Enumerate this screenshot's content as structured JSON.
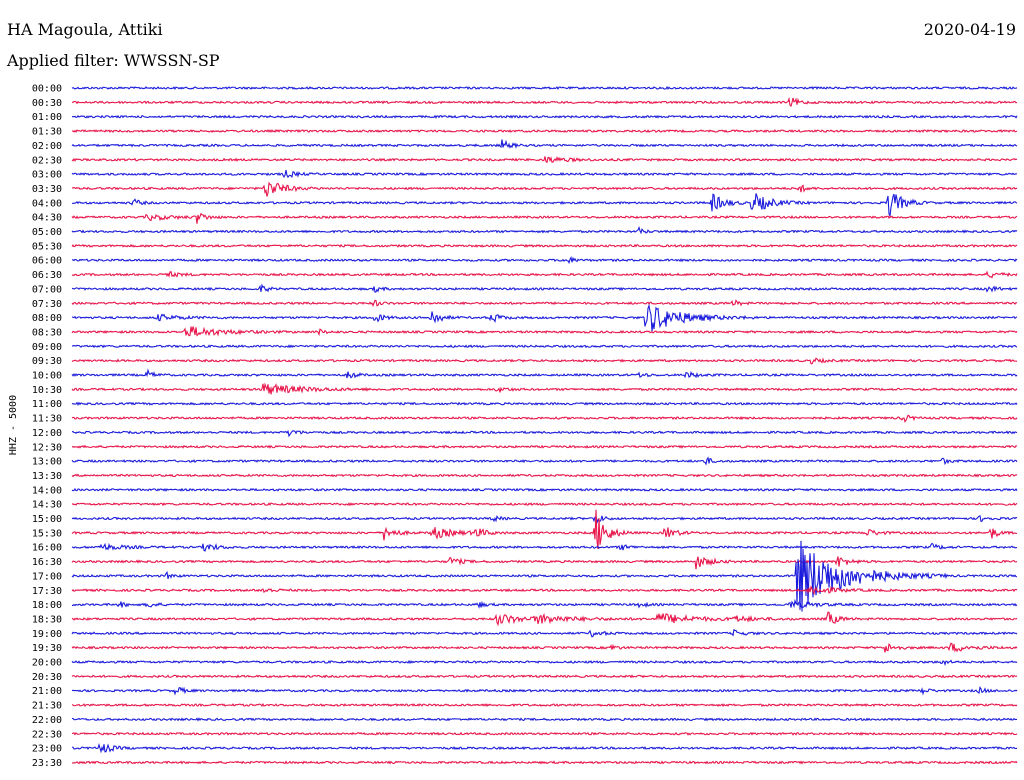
{
  "header": {
    "station": "HA Magoula, Attiki",
    "date": "2020-04-19",
    "filter": "Applied filter: WWSSN-SP"
  },
  "chart_data": {
    "type": "line",
    "subtype": "helicorder",
    "title": "HA Magoula, Attiki",
    "date": "2020-04-19",
    "filter": "WWSSN-SP",
    "ylabel": "HHZ - 5000",
    "xlabel": "",
    "colors": [
      "#1a1adc",
      "#e8144a"
    ],
    "rows": [
      {
        "label": "00:00",
        "color": "#1a1adc",
        "events": []
      },
      {
        "label": "00:30",
        "color": "#e8144a",
        "events": [
          {
            "t": 0.76,
            "a": 5,
            "d": 0.008
          }
        ]
      },
      {
        "label": "01:00",
        "color": "#1a1adc",
        "events": []
      },
      {
        "label": "01:30",
        "color": "#e8144a",
        "events": []
      },
      {
        "label": "02:00",
        "color": "#1a1adc",
        "events": [
          {
            "t": 0.455,
            "a": 5,
            "d": 0.008
          }
        ]
      },
      {
        "label": "02:30",
        "color": "#e8144a",
        "events": [
          {
            "t": 0.5,
            "a": 3,
            "d": 0.02
          }
        ]
      },
      {
        "label": "03:00",
        "color": "#1a1adc",
        "events": [
          {
            "t": 0.225,
            "a": 4,
            "d": 0.01
          }
        ]
      },
      {
        "label": "03:30",
        "color": "#e8144a",
        "events": [
          {
            "t": 0.205,
            "a": 10,
            "d": 0.015
          },
          {
            "t": 0.77,
            "a": 4,
            "d": 0.006
          }
        ]
      },
      {
        "label": "04:00",
        "color": "#1a1adc",
        "events": [
          {
            "t": 0.065,
            "a": 4,
            "d": 0.006
          },
          {
            "t": 0.677,
            "a": 9,
            "d": 0.012
          },
          {
            "t": 0.72,
            "a": 11,
            "d": 0.016
          },
          {
            "t": 0.864,
            "a": 15,
            "d": 0.012
          }
        ]
      },
      {
        "label": "04:30",
        "color": "#e8144a",
        "events": [
          {
            "t": 0.08,
            "a": 3,
            "d": 0.02
          },
          {
            "t": 0.132,
            "a": 6,
            "d": 0.008
          }
        ]
      },
      {
        "label": "05:00",
        "color": "#1a1adc",
        "events": [
          {
            "t": 0.6,
            "a": 3,
            "d": 0.006
          }
        ]
      },
      {
        "label": "05:30",
        "color": "#e8144a",
        "events": []
      },
      {
        "label": "06:00",
        "color": "#1a1adc",
        "events": [
          {
            "t": 0.522,
            "a": 5,
            "d": 0.006
          }
        ]
      },
      {
        "label": "06:30",
        "color": "#e8144a",
        "events": [
          {
            "t": 0.1,
            "a": 3,
            "d": 0.01
          },
          {
            "t": 0.97,
            "a": 3,
            "d": 0.01
          }
        ]
      },
      {
        "label": "07:00",
        "color": "#1a1adc",
        "events": [
          {
            "t": 0.2,
            "a": 4,
            "d": 0.006
          },
          {
            "t": 0.32,
            "a": 3,
            "d": 0.006
          },
          {
            "t": 0.97,
            "a": 3,
            "d": 0.008
          }
        ]
      },
      {
        "label": "07:30",
        "color": "#e8144a",
        "events": [
          {
            "t": 0.32,
            "a": 3,
            "d": 0.006
          },
          {
            "t": 0.7,
            "a": 3,
            "d": 0.006
          }
        ]
      },
      {
        "label": "08:00",
        "color": "#1a1adc",
        "events": [
          {
            "t": 0.09,
            "a": 3,
            "d": 0.02
          },
          {
            "t": 0.32,
            "a": 5,
            "d": 0.008
          },
          {
            "t": 0.38,
            "a": 9,
            "d": 0.008
          },
          {
            "t": 0.444,
            "a": 5,
            "d": 0.008
          },
          {
            "t": 0.608,
            "a": 16,
            "d": 0.03
          }
        ]
      },
      {
        "label": "08:30",
        "color": "#e8144a",
        "events": [
          {
            "t": 0.12,
            "a": 6,
            "d": 0.03
          },
          {
            "t": 0.26,
            "a": 3,
            "d": 0.006
          }
        ]
      },
      {
        "label": "09:00",
        "color": "#1a1adc",
        "events": []
      },
      {
        "label": "09:30",
        "color": "#e8144a",
        "events": [
          {
            "t": 0.78,
            "a": 3,
            "d": 0.01
          }
        ]
      },
      {
        "label": "10:00",
        "color": "#1a1adc",
        "events": [
          {
            "t": 0.08,
            "a": 4,
            "d": 0.006
          },
          {
            "t": 0.293,
            "a": 5,
            "d": 0.006
          },
          {
            "t": 0.6,
            "a": 3,
            "d": 0.006
          },
          {
            "t": 0.65,
            "a": 3,
            "d": 0.01
          }
        ]
      },
      {
        "label": "10:30",
        "color": "#e8144a",
        "events": [
          {
            "t": 0.2,
            "a": 6,
            "d": 0.035
          },
          {
            "t": 0.45,
            "a": 3,
            "d": 0.008
          }
        ]
      },
      {
        "label": "11:00",
        "color": "#1a1adc",
        "events": []
      },
      {
        "label": "11:30",
        "color": "#e8144a",
        "events": [
          {
            "t": 0.88,
            "a": 4,
            "d": 0.006
          }
        ]
      },
      {
        "label": "12:00",
        "color": "#1a1adc",
        "events": [
          {
            "t": 0.23,
            "a": 5,
            "d": 0.006
          }
        ]
      },
      {
        "label": "12:30",
        "color": "#e8144a",
        "events": []
      },
      {
        "label": "13:00",
        "color": "#1a1adc",
        "events": [
          {
            "t": 0.67,
            "a": 4,
            "d": 0.006
          },
          {
            "t": 0.92,
            "a": 3,
            "d": 0.006
          }
        ]
      },
      {
        "label": "13:30",
        "color": "#e8144a",
        "events": []
      },
      {
        "label": "14:00",
        "color": "#1a1adc",
        "events": []
      },
      {
        "label": "14:30",
        "color": "#e8144a",
        "events": []
      },
      {
        "label": "15:00",
        "color": "#1a1adc",
        "events": [
          {
            "t": 0.445,
            "a": 3,
            "d": 0.006
          },
          {
            "t": 0.554,
            "a": 6,
            "d": 0.006
          },
          {
            "t": 0.96,
            "a": 3,
            "d": 0.008
          }
        ]
      },
      {
        "label": "15:30",
        "color": "#e8144a",
        "events": [
          {
            "t": 0.33,
            "a": 7,
            "d": 0.01
          },
          {
            "t": 0.38,
            "a": 6,
            "d": 0.02
          },
          {
            "t": 0.426,
            "a": 6,
            "d": 0.01
          },
          {
            "t": 0.554,
            "a": 24,
            "d": 0.01
          },
          {
            "t": 0.628,
            "a": 6,
            "d": 0.01
          },
          {
            "t": 0.84,
            "a": 4,
            "d": 0.01
          },
          {
            "t": 0.972,
            "a": 7,
            "d": 0.006
          }
        ]
      },
      {
        "label": "16:00",
        "color": "#1a1adc",
        "events": [
          {
            "t": 0.03,
            "a": 3,
            "d": 0.02
          },
          {
            "t": 0.14,
            "a": 5,
            "d": 0.01
          },
          {
            "t": 0.58,
            "a": 3,
            "d": 0.008
          },
          {
            "t": 0.91,
            "a": 3,
            "d": 0.008
          }
        ]
      },
      {
        "label": "16:30",
        "color": "#e8144a",
        "events": [
          {
            "t": 0.4,
            "a": 4,
            "d": 0.01
          },
          {
            "t": 0.66,
            "a": 7,
            "d": 0.012
          },
          {
            "t": 0.81,
            "a": 6,
            "d": 0.01
          }
        ]
      },
      {
        "label": "17:00",
        "color": "#1a1adc",
        "events": [
          {
            "t": 0.1,
            "a": 3,
            "d": 0.006
          },
          {
            "t": 0.767,
            "a": 40,
            "d": 0.04
          },
          {
            "t": 0.795,
            "a": 6,
            "d": 0.02
          }
        ]
      },
      {
        "label": "17:30",
        "color": "#e8144a",
        "events": [
          {
            "t": 0.2,
            "a": 3,
            "d": 0.01
          },
          {
            "t": 0.78,
            "a": 5,
            "d": 0.02
          }
        ]
      },
      {
        "label": "18:00",
        "color": "#1a1adc",
        "events": [
          {
            "t": 0.05,
            "a": 3,
            "d": 0.006
          },
          {
            "t": 0.08,
            "a": 4,
            "d": 0.006
          },
          {
            "t": 0.43,
            "a": 3,
            "d": 0.006
          },
          {
            "t": 0.6,
            "a": 3,
            "d": 0.006
          },
          {
            "t": 0.76,
            "a": 4,
            "d": 0.02
          }
        ]
      },
      {
        "label": "18:30",
        "color": "#e8144a",
        "events": [
          {
            "t": 0.45,
            "a": 6,
            "d": 0.02
          },
          {
            "t": 0.49,
            "a": 5,
            "d": 0.03
          },
          {
            "t": 0.62,
            "a": 6,
            "d": 0.03
          },
          {
            "t": 0.7,
            "a": 3,
            "d": 0.02
          },
          {
            "t": 0.8,
            "a": 8,
            "d": 0.008
          }
        ]
      },
      {
        "label": "19:00",
        "color": "#1a1adc",
        "events": [
          {
            "t": 0.55,
            "a": 3,
            "d": 0.01
          },
          {
            "t": 0.7,
            "a": 3,
            "d": 0.01
          }
        ]
      },
      {
        "label": "19:30",
        "color": "#e8144a",
        "events": [
          {
            "t": 0.57,
            "a": 3,
            "d": 0.006
          },
          {
            "t": 0.86,
            "a": 5,
            "d": 0.01
          },
          {
            "t": 0.93,
            "a": 4,
            "d": 0.02
          }
        ]
      },
      {
        "label": "20:00",
        "color": "#1a1adc",
        "events": [
          {
            "t": 0.92,
            "a": 3,
            "d": 0.006
          }
        ]
      },
      {
        "label": "20:30",
        "color": "#e8144a",
        "events": []
      },
      {
        "label": "21:00",
        "color": "#1a1adc",
        "events": [
          {
            "t": 0.11,
            "a": 5,
            "d": 0.006
          },
          {
            "t": 0.9,
            "a": 3,
            "d": 0.006
          },
          {
            "t": 0.96,
            "a": 3,
            "d": 0.006
          }
        ]
      },
      {
        "label": "21:30",
        "color": "#e8144a",
        "events": []
      },
      {
        "label": "22:00",
        "color": "#1a1adc",
        "events": []
      },
      {
        "label": "22:30",
        "color": "#e8144a",
        "events": []
      },
      {
        "label": "23:00",
        "color": "#1a1adc",
        "events": [
          {
            "t": 0.03,
            "a": 6,
            "d": 0.01
          }
        ]
      },
      {
        "label": "23:30",
        "color": "#e8144a",
        "events": []
      }
    ]
  }
}
